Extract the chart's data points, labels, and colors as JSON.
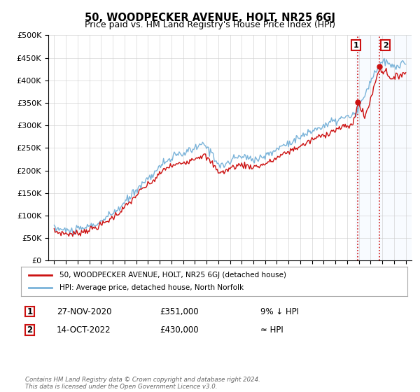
{
  "title": "50, WOODPECKER AVENUE, HOLT, NR25 6GJ",
  "subtitle": "Price paid vs. HM Land Registry's House Price Index (HPI)",
  "ylim": [
    0,
    500000
  ],
  "yticks": [
    0,
    50000,
    100000,
    150000,
    200000,
    250000,
    300000,
    350000,
    400000,
    450000,
    500000
  ],
  "ytick_labels": [
    "£0",
    "£50K",
    "£100K",
    "£150K",
    "£200K",
    "£250K",
    "£300K",
    "£350K",
    "£400K",
    "£450K",
    "£500K"
  ],
  "hpi_color": "#7ab3d9",
  "price_color": "#cc1111",
  "marker_color": "#cc1111",
  "shade_color": "#ddeeff",
  "annotation_box_color": "#ffffff",
  "annotation_border_color": "#cc1111",
  "sale1_date": "27-NOV-2020",
  "sale1_price": "£351,000",
  "sale1_note": "9% ↓ HPI",
  "sale1_x": 2020.9,
  "sale1_y": 351000,
  "sale2_date": "14-OCT-2022",
  "sale2_price": "£430,000",
  "sale2_note": "≈ HPI",
  "sale2_x": 2022.78,
  "sale2_y": 430000,
  "footer": "Contains HM Land Registry data © Crown copyright and database right 2024.\nThis data is licensed under the Open Government Licence v3.0.",
  "legend_entry1": "50, WOODPECKER AVENUE, HOLT, NR25 6GJ (detached house)",
  "legend_entry2": "HPI: Average price, detached house, North Norfolk",
  "xlim_start": 1994.5,
  "xlim_end": 2025.5
}
